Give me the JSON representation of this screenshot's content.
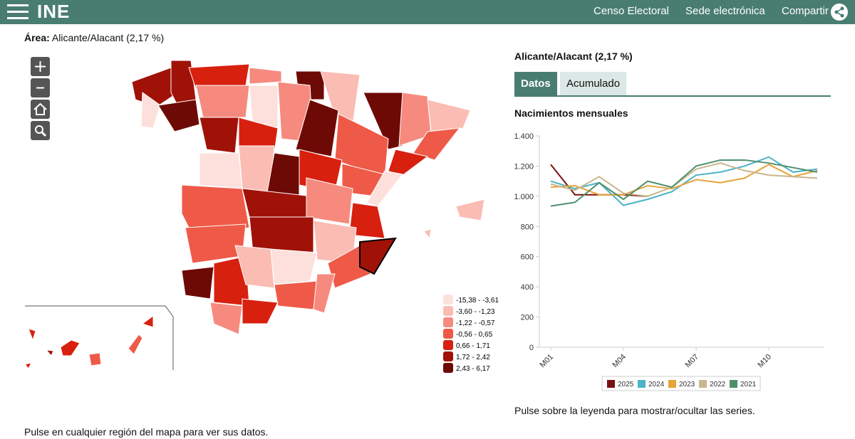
{
  "header": {
    "logo": "INE",
    "nav": [
      "Censo Electoral",
      "Sede electrónica",
      "Compartir"
    ]
  },
  "area": {
    "label": "Área:",
    "value": "Alicante/Alacant (2,17 %)"
  },
  "map": {
    "legend": [
      {
        "label": "-15,38 - -3,61",
        "color": "#fde0dc"
      },
      {
        "label": "-3,60 - -1,23",
        "color": "#fbbcb3"
      },
      {
        "label": "-1,22 - -0,57",
        "color": "#f68a7e"
      },
      {
        "label": "-0,56 - 0,65",
        "color": "#ef5a48"
      },
      {
        "label": "0,66 - 1,71",
        "color": "#d8200f"
      },
      {
        "label": "1,72 - 2,42",
        "color": "#a01208"
      },
      {
        "label": "2,43 - 6,17",
        "color": "#6e0a06"
      }
    ],
    "hint": "Pulse en cualquier región del mapa para ver sus datos."
  },
  "panel": {
    "title": "Alicante/Alacant (2,17 %)",
    "tabs": [
      "Datos",
      "Acumulado"
    ],
    "hint": "Pulse sobre la leyenda para mostrar/ocultar las series."
  },
  "chart_data": {
    "type": "line",
    "title": "Nacimientos mensuales",
    "categories": [
      "M01",
      null,
      null,
      "M04",
      null,
      null,
      "M07",
      null,
      null,
      "M10",
      null,
      null
    ],
    "series": [
      {
        "name": "2025",
        "color": "#7a1010",
        "values": [
          1210,
          1010,
          1010,
          1010,
          1000,
          null,
          null,
          null,
          null,
          null,
          null,
          null
        ]
      },
      {
        "name": "2024",
        "color": "#4bb3c8",
        "values": [
          1100,
          1050,
          1090,
          940,
          980,
          1030,
          1140,
          1160,
          1200,
          1260,
          1160,
          1180
        ]
      },
      {
        "name": "2023",
        "color": "#e8a33a",
        "values": [
          1060,
          1070,
          1010,
          1010,
          1070,
          1050,
          1110,
          1090,
          1120,
          1210,
          1130,
          1170
        ]
      },
      {
        "name": "2022",
        "color": "#c8b68e",
        "values": [
          1080,
          1040,
          1130,
          1020,
          1000,
          1060,
          1180,
          1220,
          1170,
          1140,
          1130,
          1120
        ]
      },
      {
        "name": "2021",
        "color": "#4e8f6e",
        "values": [
          935,
          960,
          1090,
          980,
          1100,
          1060,
          1200,
          1240,
          1240,
          1220,
          1190,
          1160
        ]
      }
    ],
    "ylim": [
      0,
      1400
    ],
    "yticks": [
      0,
      200,
      400,
      600,
      800,
      {
        "value": 1000,
        "label": "1.000"
      },
      {
        "value": 1200,
        "label": "1.200"
      },
      {
        "value": 1400,
        "label": "1.400"
      }
    ],
    "grid": false
  }
}
